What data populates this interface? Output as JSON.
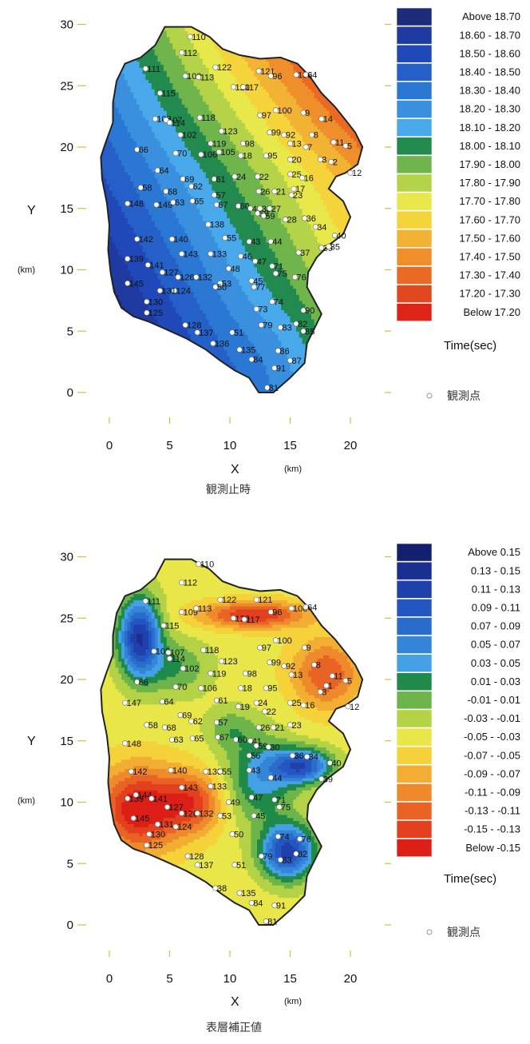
{
  "colors": {
    "legend_top": [
      "#1c2b7a",
      "#1f3aa0",
      "#2148b8",
      "#2560c8",
      "#2a78d4",
      "#3a8fde",
      "#49a9ea",
      "#228a4e",
      "#6fb54c",
      "#b5d348",
      "#e8e84a",
      "#f4d43a",
      "#f2b233",
      "#ef8f2c",
      "#ea6a25",
      "#e2481f",
      "#dd2418"
    ],
    "legend_bottom": [
      "#13206e",
      "#1a2f92",
      "#2040ac",
      "#2456c2",
      "#2a6ccc",
      "#3485d8",
      "#46a0e6",
      "#1f8a49",
      "#6db44b",
      "#b3d246",
      "#e9e64a",
      "#f5d23a",
      "#f2ae32",
      "#ee8a2b",
      "#e96424",
      "#e2401e",
      "#dc1f17"
    ]
  },
  "charts": [
    {
      "legend_items": [
        "Above  18.70",
        "18.60 - 18.70",
        "18.50 - 18.60",
        "18.40 - 18.50",
        "18.30 - 18.40",
        "18.20 - 18.30",
        "18.10 - 18.20",
        "18.00 - 18.10",
        "17.90 - 18.00",
        "17.80 - 17.90",
        "17.70 - 17.80",
        "17.60 - 17.70",
        "17.50 - 17.60",
        "17.40 - 17.50",
        "17.30 - 17.40",
        "17.20 - 17.30",
        "Below  17.20"
      ],
      "legend_title": "Time(sec)",
      "station_note": "観測点",
      "caption": "観測止時",
      "xlabel": "X",
      "ylabel": "Y",
      "unit": "(km)"
    },
    {
      "legend_items": [
        "Above  0.15",
        "0.13 -  0.15",
        "0.11 -  0.13",
        "0.09 -  0.11",
        "0.07 -  0.09",
        "0.05 -  0.07",
        "0.03 -  0.05",
        "0.01 -  0.03",
        "-0.01 -  0.01",
        "-0.03 - -0.01",
        "-0.05 - -0.03",
        "-0.07 - -0.05",
        "-0.09 - -0.07",
        "-0.11 - -0.09",
        "-0.13 - -0.11",
        "-0.15 - -0.13",
        "Below  -0.15"
      ],
      "legend_title": "Time(sec)",
      "station_note": "観測点",
      "caption": "表層補正値",
      "xlabel": "X",
      "ylabel": "Y",
      "unit": "(km)"
    }
  ],
  "chart_data": [
    {
      "type": "heatmap",
      "xlabel": "X",
      "ylabel": "Y",
      "xlim": [
        0,
        20
      ],
      "ylim": [
        0,
        30
      ],
      "x_ticks": [
        0,
        5,
        10,
        15,
        20
      ],
      "y_ticks": [
        0,
        5,
        10,
        15,
        20,
        25,
        30
      ],
      "legend_title": "Time(sec)",
      "bins": [
        "Above 18.70",
        "18.60 - 18.70",
        "18.50 - 18.60",
        "18.40 - 18.50",
        "18.30 - 18.40",
        "18.20 - 18.30",
        "18.10 - 18.20",
        "18.00 - 18.10",
        "17.90 - 18.00",
        "17.80 - 17.90",
        "17.70 - 17.80",
        "17.60 - 17.70",
        "17.50 - 17.60",
        "17.40 - 17.50",
        "17.30 - 17.40",
        "17.20 - 17.30",
        "Below 17.20"
      ],
      "grid": false,
      "legend_position": "right"
    },
    {
      "type": "heatmap",
      "xlabel": "X",
      "ylabel": "Y",
      "xlim": [
        0,
        20
      ],
      "ylim": [
        0,
        30
      ],
      "x_ticks": [
        0,
        5,
        10,
        15,
        20
      ],
      "y_ticks": [
        0,
        5,
        10,
        15,
        20,
        25,
        30
      ],
      "legend_title": "Time(sec)",
      "bins": [
        "Above 0.15",
        "0.13 - 0.15",
        "0.11 - 0.13",
        "0.09 - 0.11",
        "0.07 - 0.09",
        "0.05 - 0.07",
        "0.03 - 0.05",
        "0.01 - 0.03",
        "-0.01 - 0.01",
        "-0.03 - -0.01",
        "-0.05 - -0.03",
        "-0.07 - -0.05",
        "-0.09 - -0.07",
        "-0.11 - -0.09",
        "-0.13 - -0.11",
        "-0.15 - -0.13",
        "Below -0.15"
      ],
      "grid": false,
      "legend_position": "right"
    }
  ],
  "stations_top": [
    {
      "id": "110",
      "x": 6.7,
      "y": 29.0
    },
    {
      "id": "112",
      "x": 6.0,
      "y": 27.7
    },
    {
      "id": "122",
      "x": 8.8,
      "y": 26.5
    },
    {
      "id": "121",
      "x": 12.4,
      "y": 26.2
    },
    {
      "id": "96",
      "x": 13.4,
      "y": 25.8
    },
    {
      "id": "106",
      "x": 15.5,
      "y": 25.9
    },
    {
      "id": "64",
      "x": 16.3,
      "y": 25.9
    },
    {
      "id": "111",
      "x": 3.0,
      "y": 26.4
    },
    {
      "id": "109",
      "x": 6.3,
      "y": 25.8
    },
    {
      "id": "113",
      "x": 7.4,
      "y": 25.7
    },
    {
      "id": "120",
      "x": 10.3,
      "y": 24.9
    },
    {
      "id": "117",
      "x": 11.1,
      "y": 24.9
    },
    {
      "id": "115",
      "x": 4.2,
      "y": 24.4
    },
    {
      "id": "103",
      "x": 3.8,
      "y": 22.3
    },
    {
      "id": "107",
      "x": 4.7,
      "y": 22.2
    },
    {
      "id": "114",
      "x": 5.0,
      "y": 22.0
    },
    {
      "id": "118",
      "x": 7.5,
      "y": 22.4
    },
    {
      "id": "100",
      "x": 13.8,
      "y": 23.0
    },
    {
      "id": "97",
      "x": 12.5,
      "y": 22.6
    },
    {
      "id": "9",
      "x": 16.1,
      "y": 22.8
    },
    {
      "id": "123",
      "x": 9.3,
      "y": 21.3
    },
    {
      "id": "99",
      "x": 13.3,
      "y": 21.2
    },
    {
      "id": "92",
      "x": 14.5,
      "y": 21.0
    },
    {
      "id": "8",
      "x": 16.8,
      "y": 21.0
    },
    {
      "id": "14",
      "x": 17.6,
      "y": 22.3
    },
    {
      "id": "102",
      "x": 5.9,
      "y": 21.0
    },
    {
      "id": "119",
      "x": 8.4,
      "y": 20.3
    },
    {
      "id": "98",
      "x": 11.1,
      "y": 20.3
    },
    {
      "id": "13",
      "x": 15.0,
      "y": 20.3
    },
    {
      "id": "7",
      "x": 16.3,
      "y": 20.0
    },
    {
      "id": "11",
      "x": 18.6,
      "y": 20.4
    },
    {
      "id": "5",
      "x": 19.6,
      "y": 20.1
    },
    {
      "id": "105",
      "x": 9.1,
      "y": 19.6
    },
    {
      "id": "66",
      "x": 2.3,
      "y": 19.8
    },
    {
      "id": "70",
      "x": 5.5,
      "y": 19.5
    },
    {
      "id": "106",
      "x": 7.6,
      "y": 19.4
    },
    {
      "id": "18",
      "x": 10.9,
      "y": 19.3
    },
    {
      "id": "95",
      "x": 13.0,
      "y": 19.3
    },
    {
      "id": "20",
      "x": 15.0,
      "y": 19.0
    },
    {
      "id": "3",
      "x": 17.5,
      "y": 19.0
    },
    {
      "id": "2",
      "x": 18.4,
      "y": 18.8
    },
    {
      "id": "64",
      "x": 4.0,
      "y": 18.1
    },
    {
      "id": "69",
      "x": 6.1,
      "y": 17.4
    },
    {
      "id": "62",
      "x": 6.8,
      "y": 16.8
    },
    {
      "id": "61",
      "x": 8.7,
      "y": 17.4
    },
    {
      "id": "24",
      "x": 10.4,
      "y": 17.6
    },
    {
      "id": "22",
      "x": 12.3,
      "y": 17.6
    },
    {
      "id": "25",
      "x": 15.0,
      "y": 17.8
    },
    {
      "id": "16",
      "x": 16.0,
      "y": 17.5
    },
    {
      "id": "12",
      "x": 20.0,
      "y": 17.9
    },
    {
      "id": "58",
      "x": 2.6,
      "y": 16.7
    },
    {
      "id": "68",
      "x": 4.7,
      "y": 16.4
    },
    {
      "id": "57",
      "x": 8.7,
      "y": 16.1
    },
    {
      "id": "17",
      "x": 15.3,
      "y": 16.6
    },
    {
      "id": "23",
      "x": 15.1,
      "y": 16.1
    },
    {
      "id": "26",
      "x": 12.4,
      "y": 16.4
    },
    {
      "id": "21",
      "x": 13.7,
      "y": 16.4
    },
    {
      "id": "148",
      "x": 1.5,
      "y": 15.4
    },
    {
      "id": "149",
      "x": 3.9,
      "y": 15.3
    },
    {
      "id": "63",
      "x": 5.3,
      "y": 15.5
    },
    {
      "id": "65",
      "x": 6.9,
      "y": 15.6
    },
    {
      "id": "67",
      "x": 8.9,
      "y": 15.3
    },
    {
      "id": "60",
      "x": 10.7,
      "y": 15.2
    },
    {
      "id": "41",
      "x": 11.7,
      "y": 15.0
    },
    {
      "id": "58",
      "x": 12.3,
      "y": 14.6
    },
    {
      "id": "59",
      "x": 12.8,
      "y": 14.4
    },
    {
      "id": "30",
      "x": 12.5,
      "y": 15.0
    },
    {
      "id": "27",
      "x": 13.3,
      "y": 15.0
    },
    {
      "id": "28",
      "x": 14.6,
      "y": 14.1
    },
    {
      "id": "36",
      "x": 16.2,
      "y": 14.2
    },
    {
      "id": "34",
      "x": 17.1,
      "y": 13.5
    },
    {
      "id": "40",
      "x": 18.7,
      "y": 12.8
    },
    {
      "id": "142",
      "x": 2.3,
      "y": 12.5
    },
    {
      "id": "140",
      "x": 5.2,
      "y": 12.5
    },
    {
      "id": "138",
      "x": 8.2,
      "y": 13.7
    },
    {
      "id": "55",
      "x": 9.6,
      "y": 12.6
    },
    {
      "id": "43",
      "x": 11.6,
      "y": 12.3
    },
    {
      "id": "44",
      "x": 13.4,
      "y": 12.3
    },
    {
      "id": "39",
      "x": 17.6,
      "y": 11.8
    },
    {
      "id": "35",
      "x": 18.2,
      "y": 11.9
    },
    {
      "id": "133",
      "x": 8.4,
      "y": 11.3
    },
    {
      "id": "143",
      "x": 6.0,
      "y": 11.3
    },
    {
      "id": "47",
      "x": 12.1,
      "y": 10.7
    },
    {
      "id": "46",
      "x": 10.9,
      "y": 11.1
    },
    {
      "id": "37",
      "x": 15.7,
      "y": 11.4
    },
    {
      "id": "71",
      "x": 13.5,
      "y": 10.3
    },
    {
      "id": "75",
      "x": 13.8,
      "y": 9.7
    },
    {
      "id": "48",
      "x": 9.9,
      "y": 10.1
    },
    {
      "id": "139",
      "x": 1.5,
      "y": 10.9
    },
    {
      "id": "141",
      "x": 3.2,
      "y": 10.4
    },
    {
      "id": "127",
      "x": 4.4,
      "y": 9.8
    },
    {
      "id": "126",
      "x": 5.7,
      "y": 9.4
    },
    {
      "id": "132",
      "x": 7.2,
      "y": 9.4
    },
    {
      "id": "53",
      "x": 9.2,
      "y": 8.9
    },
    {
      "id": "50",
      "x": 8.8,
      "y": 8.6
    },
    {
      "id": "45",
      "x": 11.8,
      "y": 9.1
    },
    {
      "id": "76",
      "x": 15.4,
      "y": 9.4
    },
    {
      "id": "77",
      "x": 12.0,
      "y": 8.6
    },
    {
      "id": "145",
      "x": 1.5,
      "y": 8.9
    },
    {
      "id": "124",
      "x": 5.4,
      "y": 8.3
    },
    {
      "id": "131",
      "x": 4.2,
      "y": 8.3
    },
    {
      "id": "130",
      "x": 3.1,
      "y": 7.4
    },
    {
      "id": "73",
      "x": 12.2,
      "y": 6.8
    },
    {
      "id": "74",
      "x": 13.5,
      "y": 7.4
    },
    {
      "id": "90",
      "x": 16.1,
      "y": 6.7
    },
    {
      "id": "125",
      "x": 3.1,
      "y": 6.5
    },
    {
      "id": "128",
      "x": 6.3,
      "y": 5.5
    },
    {
      "id": "137",
      "x": 7.3,
      "y": 4.9
    },
    {
      "id": "79",
      "x": 12.6,
      "y": 5.5
    },
    {
      "id": "83",
      "x": 14.2,
      "y": 5.3
    },
    {
      "id": "82",
      "x": 15.5,
      "y": 5.6
    },
    {
      "id": "85",
      "x": 16.1,
      "y": 5.0
    },
    {
      "id": "51",
      "x": 10.2,
      "y": 4.9
    },
    {
      "id": "136",
      "x": 8.6,
      "y": 4.0
    },
    {
      "id": "135",
      "x": 10.8,
      "y": 3.5
    },
    {
      "id": "86",
      "x": 14.0,
      "y": 3.4
    },
    {
      "id": "84",
      "x": 11.8,
      "y": 2.7
    },
    {
      "id": "87",
      "x": 15.0,
      "y": 2.6
    },
    {
      "id": "91",
      "x": 13.7,
      "y": 2.0
    },
    {
      "id": "81",
      "x": 13.1,
      "y": 0.4
    }
  ],
  "stations_bottom": [
    {
      "id": "110",
      "x": 7.4,
      "y": 29.4
    },
    {
      "id": "112",
      "x": 6.0,
      "y": 27.9
    },
    {
      "id": "122",
      "x": 9.2,
      "y": 26.5
    },
    {
      "id": "121",
      "x": 12.2,
      "y": 26.5
    },
    {
      "id": "96",
      "x": 13.4,
      "y": 25.5
    },
    {
      "id": "106",
      "x": 15.1,
      "y": 25.8
    },
    {
      "id": "64",
      "x": 16.3,
      "y": 25.9
    },
    {
      "id": "111",
      "x": 3.0,
      "y": 26.4
    },
    {
      "id": "109",
      "x": 6.0,
      "y": 25.5
    },
    {
      "id": "113",
      "x": 7.2,
      "y": 25.8
    },
    {
      "id": "120",
      "x": 10.3,
      "y": 25.0
    },
    {
      "id": "117",
      "x": 11.2,
      "y": 24.9
    },
    {
      "id": "115",
      "x": 4.5,
      "y": 24.4
    },
    {
      "id": "103",
      "x": 3.7,
      "y": 22.3
    },
    {
      "id": "107",
      "x": 4.9,
      "y": 22.2
    },
    {
      "id": "114",
      "x": 5.0,
      "y": 21.7
    },
    {
      "id": "118",
      "x": 7.8,
      "y": 22.4
    },
    {
      "id": "100",
      "x": 13.8,
      "y": 23.2
    },
    {
      "id": "97",
      "x": 12.5,
      "y": 22.6
    },
    {
      "id": "9",
      "x": 16.2,
      "y": 22.6
    },
    {
      "id": "123",
      "x": 9.3,
      "y": 21.5
    },
    {
      "id": "99",
      "x": 13.3,
      "y": 21.4
    },
    {
      "id": "92",
      "x": 14.5,
      "y": 21.1
    },
    {
      "id": "8",
      "x": 17.0,
      "y": 21.2
    },
    {
      "id": "102",
      "x": 6.1,
      "y": 20.9
    },
    {
      "id": "119",
      "x": 8.4,
      "y": 20.5
    },
    {
      "id": "98",
      "x": 11.3,
      "y": 20.5
    },
    {
      "id": "13",
      "x": 15.1,
      "y": 20.4
    },
    {
      "id": "11",
      "x": 18.5,
      "y": 20.3
    },
    {
      "id": "5",
      "x": 19.6,
      "y": 19.9
    },
    {
      "id": "66",
      "x": 2.3,
      "y": 19.8
    },
    {
      "id": "70",
      "x": 5.5,
      "y": 19.4
    },
    {
      "id": "106",
      "x": 7.6,
      "y": 19.3
    },
    {
      "id": "18",
      "x": 10.9,
      "y": 19.3
    },
    {
      "id": "95",
      "x": 13.0,
      "y": 19.3
    },
    {
      "id": "3",
      "x": 17.5,
      "y": 19.0
    },
    {
      "id": "1",
      "x": 18.0,
      "y": 19.5
    },
    {
      "id": "147",
      "x": 1.3,
      "y": 18.1
    },
    {
      "id": "64",
      "x": 4.4,
      "y": 18.2
    },
    {
      "id": "61",
      "x": 8.9,
      "y": 18.3
    },
    {
      "id": "19",
      "x": 10.7,
      "y": 17.8
    },
    {
      "id": "24",
      "x": 12.2,
      "y": 18.1
    },
    {
      "id": "25",
      "x": 15.0,
      "y": 18.1
    },
    {
      "id": "16",
      "x": 16.1,
      "y": 17.9
    },
    {
      "id": "12",
      "x": 19.8,
      "y": 17.8
    },
    {
      "id": "69",
      "x": 5.9,
      "y": 17.1
    },
    {
      "id": "62",
      "x": 6.8,
      "y": 16.6
    },
    {
      "id": "22",
      "x": 12.9,
      "y": 17.4
    },
    {
      "id": "58",
      "x": 3.1,
      "y": 16.3
    },
    {
      "id": "68",
      "x": 4.6,
      "y": 16.1
    },
    {
      "id": "57",
      "x": 8.9,
      "y": 16.5
    },
    {
      "id": "26",
      "x": 12.4,
      "y": 16.1
    },
    {
      "id": "21",
      "x": 13.6,
      "y": 16.1
    },
    {
      "id": "23",
      "x": 15.0,
      "y": 16.3
    },
    {
      "id": "148",
      "x": 1.3,
      "y": 14.8
    },
    {
      "id": "63",
      "x": 5.2,
      "y": 15.1
    },
    {
      "id": "65",
      "x": 6.9,
      "y": 15.2
    },
    {
      "id": "67",
      "x": 9.0,
      "y": 15.3
    },
    {
      "id": "60",
      "x": 10.5,
      "y": 15.1
    },
    {
      "id": "41",
      "x": 11.7,
      "y": 15.0
    },
    {
      "id": "59",
      "x": 12.2,
      "y": 14.6
    },
    {
      "id": "30",
      "x": 13.2,
      "y": 14.5
    },
    {
      "id": "36",
      "x": 15.2,
      "y": 13.8
    },
    {
      "id": "34",
      "x": 16.4,
      "y": 13.7
    },
    {
      "id": "40",
      "x": 18.3,
      "y": 13.2
    },
    {
      "id": "56",
      "x": 11.6,
      "y": 13.8
    },
    {
      "id": "142",
      "x": 1.8,
      "y": 12.5
    },
    {
      "id": "140",
      "x": 5.1,
      "y": 12.6
    },
    {
      "id": "138",
      "x": 8.0,
      "y": 12.5
    },
    {
      "id": "55",
      "x": 9.2,
      "y": 12.5
    },
    {
      "id": "43",
      "x": 11.6,
      "y": 12.6
    },
    {
      "id": "44",
      "x": 13.4,
      "y": 12.0
    },
    {
      "id": "39",
      "x": 17.6,
      "y": 11.9
    },
    {
      "id": "133",
      "x": 8.4,
      "y": 11.3
    },
    {
      "id": "143",
      "x": 6.0,
      "y": 11.2
    },
    {
      "id": "47",
      "x": 11.8,
      "y": 10.4
    },
    {
      "id": "49",
      "x": 9.9,
      "y": 10.0
    },
    {
      "id": "71",
      "x": 13.7,
      "y": 10.2
    },
    {
      "id": "75",
      "x": 14.1,
      "y": 9.6
    },
    {
      "id": "139",
      "x": 1.5,
      "y": 10.3
    },
    {
      "id": "144",
      "x": 2.2,
      "y": 10.6
    },
    {
      "id": "141",
      "x": 3.5,
      "y": 10.3
    },
    {
      "id": "127",
      "x": 4.8,
      "y": 9.6
    },
    {
      "id": "126",
      "x": 6.0,
      "y": 9.1
    },
    {
      "id": "132",
      "x": 7.3,
      "y": 9.1
    },
    {
      "id": "53",
      "x": 9.2,
      "y": 8.9
    },
    {
      "id": "45",
      "x": 12.0,
      "y": 8.9
    },
    {
      "id": "145",
      "x": 2.0,
      "y": 8.7
    },
    {
      "id": "124",
      "x": 5.5,
      "y": 8.0
    },
    {
      "id": "131",
      "x": 4.0,
      "y": 8.2
    },
    {
      "id": "130",
      "x": 3.3,
      "y": 7.4
    },
    {
      "id": "50",
      "x": 10.2,
      "y": 7.4
    },
    {
      "id": "74",
      "x": 14.0,
      "y": 7.2
    },
    {
      "id": "76",
      "x": 15.8,
      "y": 7.0
    },
    {
      "id": "125",
      "x": 3.1,
      "y": 6.5
    },
    {
      "id": "128",
      "x": 6.5,
      "y": 5.6
    },
    {
      "id": "137",
      "x": 7.3,
      "y": 4.9
    },
    {
      "id": "79",
      "x": 12.6,
      "y": 5.6
    },
    {
      "id": "83",
      "x": 14.2,
      "y": 5.3
    },
    {
      "id": "82",
      "x": 15.5,
      "y": 5.8
    },
    {
      "id": "51",
      "x": 10.4,
      "y": 4.9
    },
    {
      "id": "38",
      "x": 8.8,
      "y": 3.0
    },
    {
      "id": "135",
      "x": 10.8,
      "y": 2.6
    },
    {
      "id": "84",
      "x": 11.8,
      "y": 1.8
    },
    {
      "id": "91",
      "x": 13.7,
      "y": 1.6
    },
    {
      "id": "81",
      "x": 13.0,
      "y": 0.3
    }
  ]
}
